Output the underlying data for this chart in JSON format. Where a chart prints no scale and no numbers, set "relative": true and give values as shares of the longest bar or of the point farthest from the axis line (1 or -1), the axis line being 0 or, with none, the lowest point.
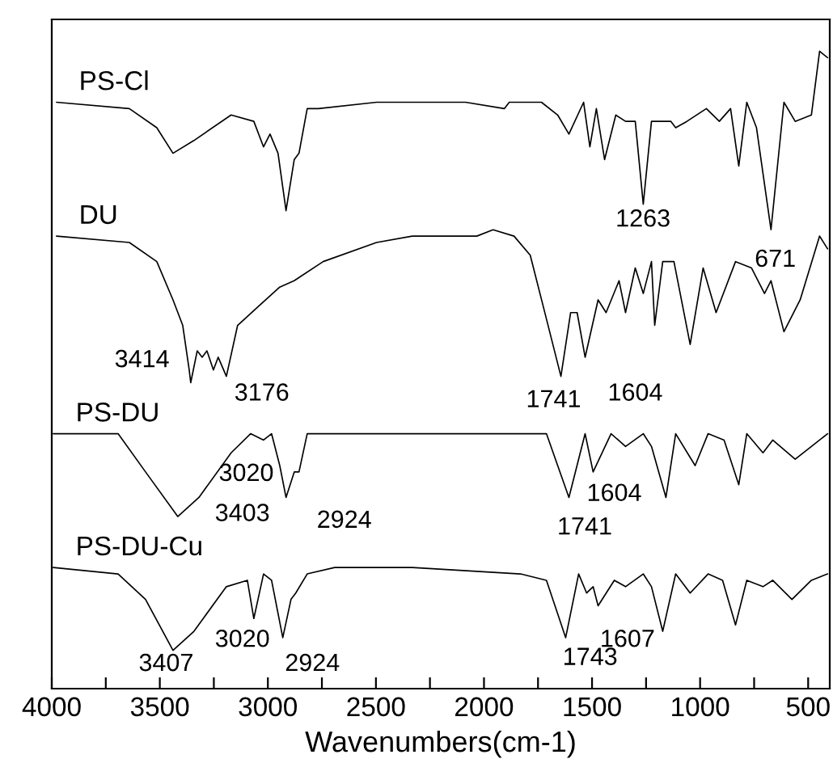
{
  "chart_data": {
    "type": "line",
    "relative": true,
    "xlabel": "Wavenumbers(cm-1)",
    "xlim": [
      4000,
      400
    ],
    "xticks": [
      4000,
      {
        "value": 3750,
        "label": null
      },
      3500,
      {
        "value": 3250,
        "label": null
      },
      3000,
      {
        "value": 2750,
        "label": null
      },
      2500,
      {
        "value": 2250,
        "label": null
      },
      2000,
      {
        "value": 1750,
        "label": null
      },
      1500,
      {
        "value": 1250,
        "label": null
      },
      1000,
      {
        "value": 750,
        "label": null
      },
      500
    ],
    "grid": false,
    "legend": false,
    "marker": "none",
    "line_style": "solid",
    "tick_labels": "x",
    "series": [
      {
        "name": "PS-Cl",
        "color": "#000000",
        "x": [
          3978,
          3641,
          3514,
          3439,
          3342,
          3170,
          3065,
          3020,
          2990,
          2953,
          2916,
          2878,
          2856,
          2818,
          2766,
          2497,
          2332,
          2085,
          1906,
          1883,
          1734,
          1659,
          1607,
          1539,
          1510,
          1480,
          1442,
          1390,
          1345,
          1300,
          1263,
          1225,
          1135,
          1113,
          1061,
          971,
          911,
          859,
          821,
          784,
          739,
          672,
          612,
          560,
          485,
          447,
          410
        ],
        "values": [
          0.92,
          0.91,
          0.88,
          0.84,
          0.86,
          0.9,
          0.89,
          0.85,
          0.87,
          0.84,
          0.75,
          0.83,
          0.84,
          0.91,
          0.91,
          0.92,
          0.92,
          0.92,
          0.91,
          0.92,
          0.92,
          0.9,
          0.87,
          0.92,
          0.85,
          0.91,
          0.83,
          0.9,
          0.89,
          0.89,
          0.76,
          0.89,
          0.89,
          0.88,
          0.89,
          0.91,
          0.89,
          0.91,
          0.82,
          0.92,
          0.88,
          0.72,
          0.92,
          0.89,
          0.9,
          1.0,
          0.99
        ]
      },
      {
        "name": "DU",
        "color": "#000000",
        "x": [
          3978,
          3641,
          3514,
          3439,
          3394,
          3364,
          3357,
          3327,
          3304,
          3282,
          3252,
          3230,
          3192,
          3140,
          3043,
          2945,
          2878,
          2744,
          2497,
          2332,
          2033,
          1958,
          1861,
          1786,
          1711,
          1644,
          1599,
          1569,
          1532,
          1472,
          1435,
          1375,
          1345,
          1300,
          1263,
          1225,
          1210,
          1173,
          1121,
          1046,
          986,
          926,
          836,
          762,
          702,
          672,
          612,
          537,
          447,
          410
        ],
        "values": [
          0.71,
          0.7,
          0.67,
          0.61,
          0.57,
          0.5,
          0.48,
          0.53,
          0.52,
          0.53,
          0.5,
          0.52,
          0.49,
          0.57,
          0.6,
          0.63,
          0.64,
          0.67,
          0.7,
          0.71,
          0.71,
          0.72,
          0.71,
          0.68,
          0.58,
          0.49,
          0.59,
          0.59,
          0.52,
          0.61,
          0.59,
          0.64,
          0.59,
          0.66,
          0.62,
          0.67,
          0.57,
          0.67,
          0.67,
          0.54,
          0.66,
          0.59,
          0.67,
          0.66,
          0.62,
          0.64,
          0.56,
          0.61,
          0.71,
          0.69
        ]
      },
      {
        "name": "PS-DU",
        "color": "#000000",
        "x": [
          3993,
          3693,
          3566,
          3417,
          3319,
          3170,
          3080,
          3020,
          2983,
          2945,
          2916,
          2878,
          2856,
          2818,
          2691,
          2332,
          1958,
          1711,
          1659,
          1607,
          1532,
          1495,
          1412,
          1345,
          1263,
          1225,
          1158,
          1113,
          1023,
          963,
          889,
          821,
          784,
          709,
          664,
          560,
          485,
          410
        ],
        "values": [
          0.4,
          0.4,
          0.34,
          0.27,
          0.3,
          0.37,
          0.4,
          0.39,
          0.4,
          0.35,
          0.3,
          0.34,
          0.34,
          0.4,
          0.4,
          0.4,
          0.4,
          0.4,
          0.35,
          0.3,
          0.4,
          0.34,
          0.4,
          0.38,
          0.4,
          0.38,
          0.3,
          0.4,
          0.35,
          0.4,
          0.39,
          0.32,
          0.4,
          0.37,
          0.39,
          0.36,
          0.38,
          0.4
        ]
      },
      {
        "name": "PS-DU-Cu",
        "color": "#000000",
        "x": [
          3993,
          3693,
          3566,
          3439,
          3342,
          3192,
          3095,
          3065,
          3020,
          2983,
          2931,
          2893,
          2871,
          2818,
          2691,
          2332,
          1831,
          1711,
          1622,
          1562,
          1525,
          1495,
          1472,
          1397,
          1345,
          1263,
          1225,
          1173,
          1113,
          1046,
          963,
          896,
          836,
          784,
          709,
          664,
          575,
          485,
          410
        ],
        "values": [
          0.19,
          0.18,
          0.14,
          0.06,
          0.09,
          0.16,
          0.17,
          0.11,
          0.18,
          0.17,
          0.08,
          0.14,
          0.15,
          0.18,
          0.19,
          0.19,
          0.18,
          0.17,
          0.08,
          0.18,
          0.15,
          0.16,
          0.13,
          0.17,
          0.16,
          0.18,
          0.16,
          0.09,
          0.18,
          0.15,
          0.18,
          0.17,
          0.1,
          0.17,
          0.16,
          0.17,
          0.14,
          0.17,
          0.18
        ]
      }
    ],
    "annotations": [
      "1263",
      "671",
      "3414",
      "3176",
      "1741",
      "1604",
      "3020",
      "3403",
      "2924",
      "1604",
      "1741",
      "3020",
      "3407",
      "2924",
      "1607",
      "1743"
    ]
  }
}
